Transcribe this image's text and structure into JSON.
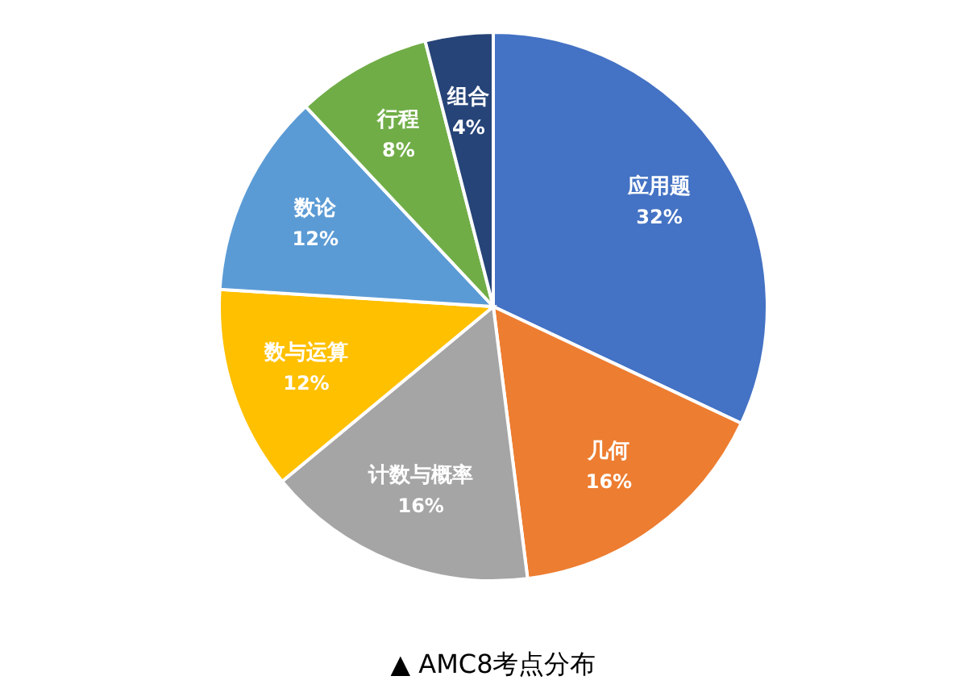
{
  "chart_data": {
    "type": "pie",
    "title": "▲ AMC8考点分布",
    "categories": [
      "应用题",
      "几何",
      "计数与概率",
      "数与运算",
      "数论",
      "行程",
      "组合"
    ],
    "values": [
      32,
      16,
      16,
      12,
      12,
      8,
      4
    ],
    "colors": [
      "#4472c4",
      "#ed7d31",
      "#a5a5a5",
      "#ffc000",
      "#5b9bd5",
      "#70ad47",
      "#264478"
    ],
    "value_labels": [
      "32%",
      "16%",
      "16%",
      "12%",
      "12%",
      "8%",
      "4%"
    ]
  }
}
